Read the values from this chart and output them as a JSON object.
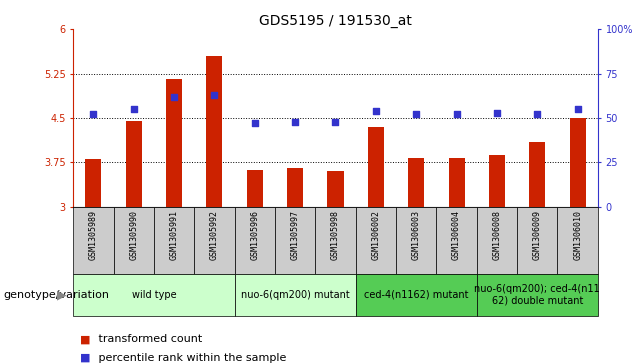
{
  "title": "GDS5195 / 191530_at",
  "samples": [
    "GSM1305989",
    "GSM1305990",
    "GSM1305991",
    "GSM1305992",
    "GSM1305996",
    "GSM1305997",
    "GSM1305998",
    "GSM1306002",
    "GSM1306003",
    "GSM1306004",
    "GSM1306008",
    "GSM1306009",
    "GSM1306010"
  ],
  "bar_values": [
    3.8,
    4.45,
    5.15,
    5.55,
    3.62,
    3.65,
    3.6,
    4.35,
    3.82,
    3.82,
    3.88,
    4.1,
    4.5
  ],
  "percentile_values": [
    52,
    55,
    62,
    63,
    47,
    48,
    48,
    54,
    52,
    52,
    53,
    52,
    55
  ],
  "bar_color": "#CC2200",
  "percentile_color": "#3333CC",
  "ylim_left": [
    3,
    6
  ],
  "ylim_right": [
    0,
    100
  ],
  "yticks_left": [
    3,
    3.75,
    4.5,
    5.25,
    6
  ],
  "yticks_right": [
    0,
    25,
    50,
    75,
    100
  ],
  "ytick_labels_left": [
    "3",
    "3.75",
    "4.5",
    "5.25",
    "6"
  ],
  "ytick_labels_right": [
    "0",
    "25",
    "50",
    "75",
    "100%"
  ],
  "hlines": [
    3.75,
    4.5,
    5.25
  ],
  "groups": [
    {
      "label": "wild type",
      "samples_idx": [
        0,
        1,
        2,
        3
      ],
      "color": "#CCFFCC"
    },
    {
      "label": "nuo-6(qm200) mutant",
      "samples_idx": [
        4,
        5,
        6
      ],
      "color": "#CCFFCC"
    },
    {
      "label": "ced-4(n1162) mutant",
      "samples_idx": [
        7,
        8,
        9
      ],
      "color": "#55CC55"
    },
    {
      "label": "nuo-6(qm200); ced-4(n11\n62) double mutant",
      "samples_idx": [
        10,
        11,
        12
      ],
      "color": "#55CC55"
    }
  ],
  "genotype_label": "genotype/variation",
  "legend_items": [
    {
      "label": " transformed count",
      "color": "#CC2200"
    },
    {
      "label": " percentile rank within the sample",
      "color": "#3333CC"
    }
  ],
  "background_color": "#FFFFFF",
  "tick_area_bg": "#CCCCCC",
  "bar_width": 0.4,
  "fontsize_ticks": 7,
  "fontsize_samples": 6,
  "fontsize_groups": 7,
  "fontsize_title": 10,
  "fontsize_legend": 8
}
